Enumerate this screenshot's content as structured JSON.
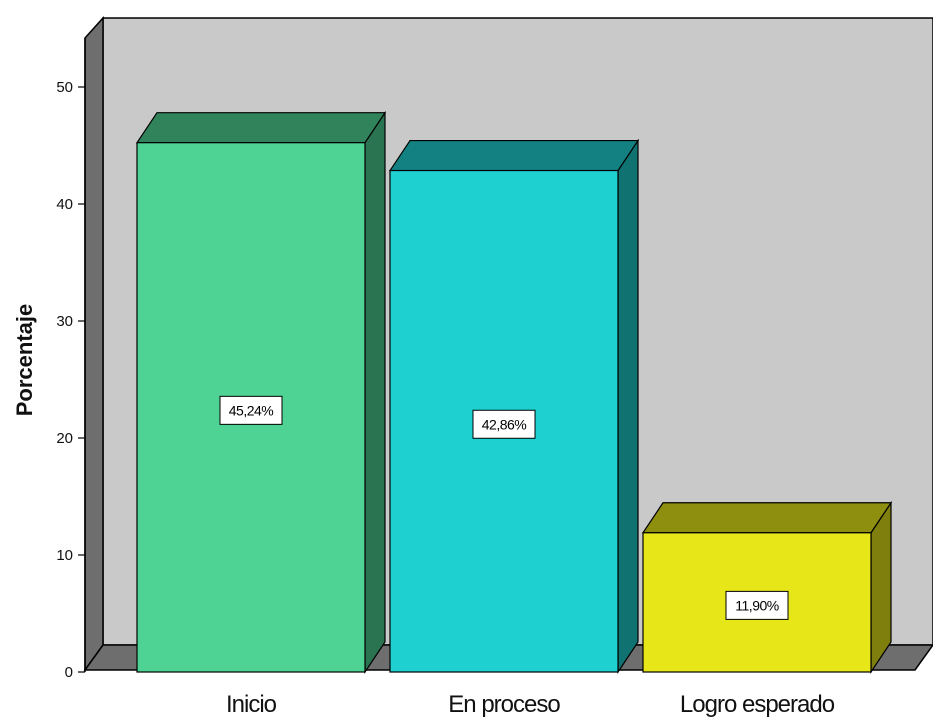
{
  "chart_data": {
    "type": "bar",
    "title": "",
    "xlabel": "",
    "ylabel": "Porcentaje",
    "ylim": [
      0,
      55
    ],
    "yticks": [
      0,
      10,
      20,
      30,
      40,
      50
    ],
    "categories": [
      "Inicio",
      "En proceso",
      "Logro esperado"
    ],
    "values": [
      45.24,
      42.86,
      11.9
    ],
    "value_labels": [
      "45,24%",
      "42,86%",
      "11,90%"
    ],
    "colors": [
      "#4fd394",
      "#1ed0d0",
      "#e6e618"
    ],
    "grid": false,
    "style": "3d"
  }
}
